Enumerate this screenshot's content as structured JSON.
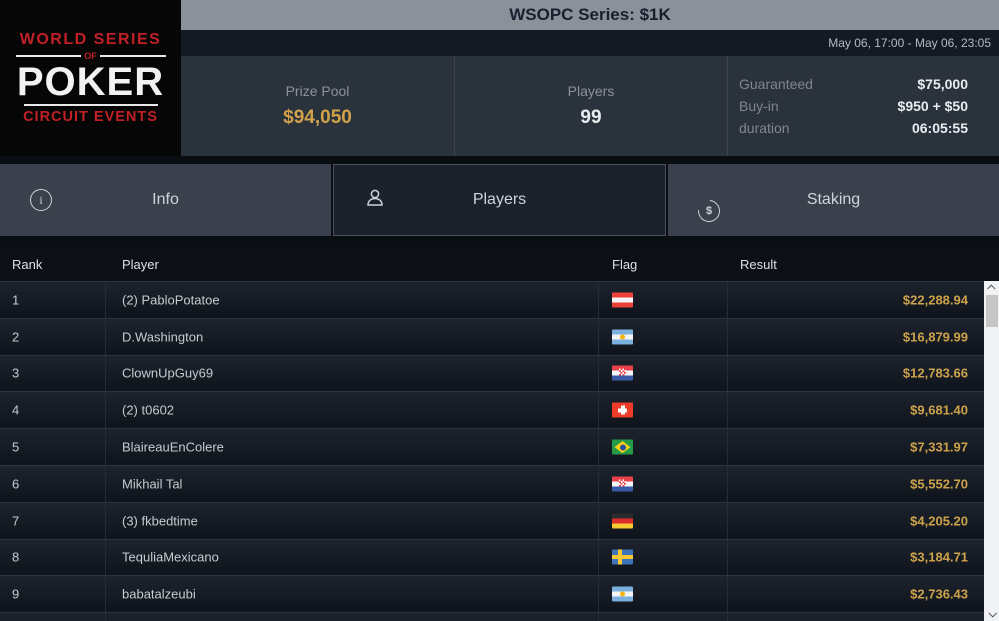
{
  "window": {
    "title": "WSOPC Series: $1K",
    "date_range": "May 06, 17:00 - May 06, 23:05"
  },
  "logo": {
    "line1": "WORLD SERIES",
    "line2": "OF",
    "line3": "POKER",
    "line4": "CIRCUIT EVENTS"
  },
  "stats": {
    "prize_pool": {
      "label": "Prize Pool",
      "value": "$94,050"
    },
    "players": {
      "label": "Players",
      "value": "99"
    },
    "details": [
      {
        "label": "Guaranteed",
        "value": "$75,000"
      },
      {
        "label": "Buy-in",
        "value": "$950 + $50"
      },
      {
        "label": "duration",
        "value": "06:05:55"
      }
    ]
  },
  "tabs": [
    {
      "label": "Info",
      "icon": "info-icon",
      "active": false
    },
    {
      "label": "Players",
      "icon": "person-icon",
      "active": true
    },
    {
      "label": "Staking",
      "icon": "dollar-circle-icon",
      "active": false
    }
  ],
  "table": {
    "columns": [
      "Rank",
      "Player",
      "Flag",
      "Result"
    ],
    "rows": [
      {
        "rank": "1",
        "player": "(2) PabloPotatoe",
        "flag": "austria",
        "result": "$22,288.94"
      },
      {
        "rank": "2",
        "player": "D.Washington",
        "flag": "argentina",
        "result": "$16,879.99"
      },
      {
        "rank": "3",
        "player": "ClownUpGuy69",
        "flag": "croatia",
        "result": "$12,783.66"
      },
      {
        "rank": "4",
        "player": "(2) t0602",
        "flag": "switzerland",
        "result": "$9,681.40"
      },
      {
        "rank": "5",
        "player": "BlaireauEnColere",
        "flag": "brazil",
        "result": "$7,331.97"
      },
      {
        "rank": "6",
        "player": "Mikhail Tal",
        "flag": "croatia",
        "result": "$5,552.70"
      },
      {
        "rank": "7",
        "player": "(3) fkbedtime",
        "flag": "germany",
        "result": "$4,205.20"
      },
      {
        "rank": "8",
        "player": "TequliaMexicano",
        "flag": "sweden",
        "result": "$3,184.71"
      },
      {
        "rank": "9",
        "player": "babatalzeubi",
        "flag": "argentina",
        "result": "$2,736.43"
      }
    ]
  },
  "colors": {
    "accent_gold": "#d2a24b",
    "titlebar_gray": "#8b9199",
    "stats_bg": "#2a323c",
    "page_bg": "#0a0e13",
    "tab_inactive": "#3a414c",
    "tab_active": "#1b222c"
  }
}
